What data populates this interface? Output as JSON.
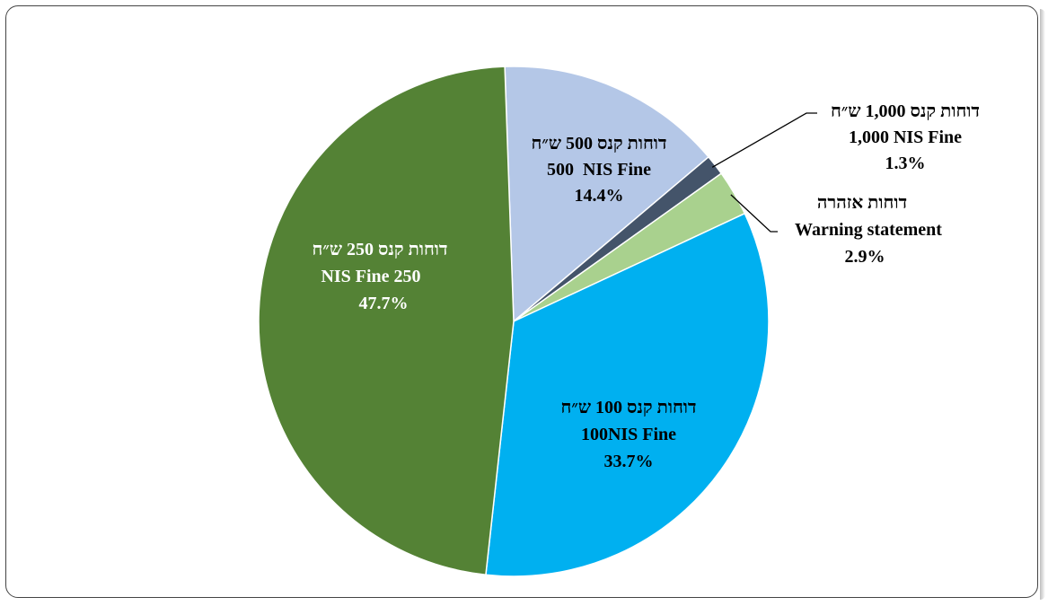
{
  "chart_data": {
    "type": "pie",
    "start_angle_deg": -92,
    "slices": [
      {
        "label_he": "דוחות קנס 500 ש״ח",
        "label_en": "500  NIS Fine",
        "pct_label": "14.4%",
        "value": 14.4,
        "color": "#b4c7e7",
        "label_color": "#000000"
      },
      {
        "label_he": "דוחות קנס 1,000 ש״ח",
        "label_en": "1,000 NIS Fine",
        "pct_label": "1.3%",
        "value": 1.3,
        "color": "#44546a",
        "label_color": "#000000"
      },
      {
        "label_he": "דוחות אזהרה",
        "label_en": "Warning statement",
        "pct_label": "2.9%",
        "value": 2.9,
        "color": "#a9d18e",
        "label_color": "#000000"
      },
      {
        "label_he": "דוחות קנס 100 ש״ח",
        "label_en": "100NIS Fine",
        "pct_label": "33.7%",
        "value": 33.7,
        "color": "#00b0f0",
        "label_color": "#000000"
      },
      {
        "label_he": "דוחות קנס 250 ש״ח",
        "label_en": "NIS Fine 250",
        "pct_label": "47.7%",
        "value": 47.7,
        "color": "#548235",
        "label_color": "#ffffff"
      }
    ]
  }
}
